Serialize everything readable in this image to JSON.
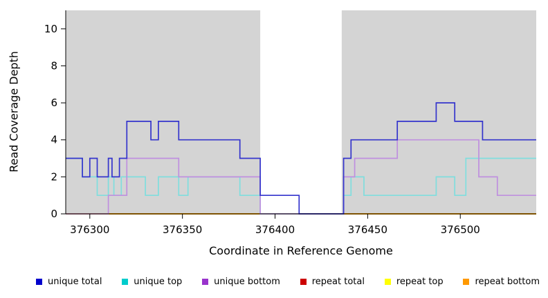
{
  "chart_data": {
    "type": "line",
    "subtype": "step-coverage-plot",
    "title": "",
    "xlabel": "Coordinate in Reference Genome",
    "ylabel": "Read Coverage Depth",
    "xlim": [
      376287,
      376541
    ],
    "ylim": [
      0,
      11
    ],
    "x_ticks": [
      376300,
      376350,
      376400,
      376450,
      376500
    ],
    "y_ticks": [
      0,
      2,
      4,
      6,
      8,
      10
    ],
    "grid": false,
    "legend_position": "bottom",
    "plot_background": "#ffffff",
    "shaded_region_color": "#d4d4d4",
    "shaded_regions": [
      {
        "x0": 376287,
        "x1": 376392
      },
      {
        "x0": 376436,
        "x1": 376541
      }
    ],
    "series": [
      {
        "id": "repeat-total",
        "name": "repeat total",
        "line_color": "#cc0000",
        "points": [
          [
            376287,
            0
          ]
        ]
      },
      {
        "id": "repeat-top",
        "name": "repeat top",
        "line_color": "#ffff00",
        "points": [
          [
            376287,
            0
          ]
        ]
      },
      {
        "id": "repeat-bottom",
        "name": "repeat bottom",
        "line_color": "#ff9900",
        "points": [
          [
            376287,
            0
          ]
        ]
      },
      {
        "id": "unique-top",
        "name": "unique top",
        "line_color": "#7fdede",
        "points": [
          [
            376287,
            3
          ],
          [
            376296,
            2
          ],
          [
            376304,
            1
          ],
          [
            376310,
            2
          ],
          [
            376313,
            1
          ],
          [
            376317,
            2
          ],
          [
            376330,
            1
          ],
          [
            376337,
            2
          ],
          [
            376348,
            1
          ],
          [
            376353,
            2
          ],
          [
            376381,
            1
          ],
          [
            376392,
            0
          ],
          [
            376437,
            1
          ],
          [
            376441,
            2
          ],
          [
            376448,
            1
          ],
          [
            376487,
            2
          ],
          [
            376497,
            1
          ],
          [
            376503,
            3
          ]
        ]
      },
      {
        "id": "unique-bottom",
        "name": "unique bottom",
        "line_color": "#bf8fdf",
        "points": [
          [
            376287,
            0
          ],
          [
            376310,
            1
          ],
          [
            376320,
            3
          ],
          [
            376348,
            2
          ],
          [
            376392,
            0
          ],
          [
            376437,
            2
          ],
          [
            376443,
            3
          ],
          [
            376466,
            4
          ],
          [
            376510,
            2
          ],
          [
            376520,
            1
          ]
        ]
      },
      {
        "id": "unique-total",
        "name": "unique total",
        "line_color": "#3333cc",
        "points": [
          [
            376287,
            3
          ],
          [
            376296,
            2
          ],
          [
            376300,
            3
          ],
          [
            376304,
            2
          ],
          [
            376310,
            3
          ],
          [
            376312,
            2
          ],
          [
            376316,
            3
          ],
          [
            376320,
            5
          ],
          [
            376333,
            4
          ],
          [
            376337,
            5
          ],
          [
            376348,
            4
          ],
          [
            376381,
            3
          ],
          [
            376392,
            1
          ],
          [
            376413,
            0
          ],
          [
            376437,
            3
          ],
          [
            376441,
            4
          ],
          [
            376466,
            5
          ],
          [
            376487,
            6
          ],
          [
            376497,
            5
          ],
          [
            376512,
            4
          ]
        ]
      }
    ],
    "legend": [
      {
        "id": "unique-total",
        "label": "unique total",
        "color": "#0000cc"
      },
      {
        "id": "unique-top",
        "label": "unique top",
        "color": "#00cccc"
      },
      {
        "id": "unique-bottom",
        "label": "unique bottom",
        "color": "#9933cc"
      },
      {
        "id": "repeat-total",
        "label": "repeat total",
        "color": "#cc0000"
      },
      {
        "id": "repeat-top",
        "label": "repeat top",
        "color": "#ffff00"
      },
      {
        "id": "repeat-bottom",
        "label": "repeat bottom",
        "color": "#ff9900"
      }
    ]
  }
}
